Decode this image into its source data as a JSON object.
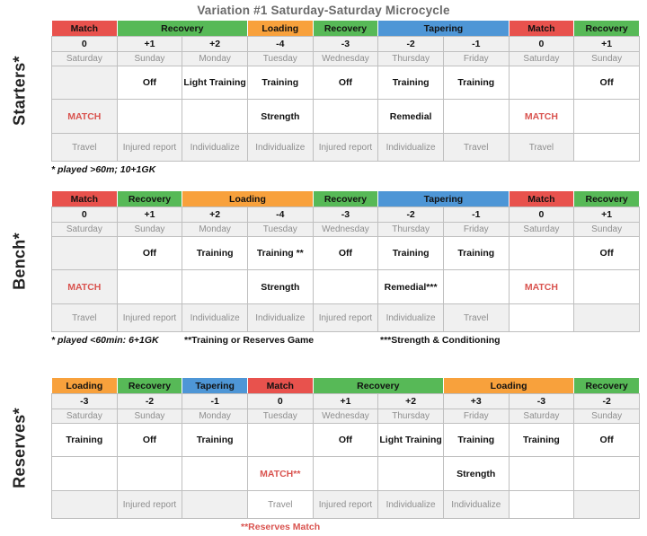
{
  "title": "Variation #1 Saturday-Saturday Microcycle",
  "colors": {
    "match_fill": "#e8524d",
    "match_text": "#7a1a14",
    "recovery_fill": "#57b957",
    "recovery_text": "#1c531c",
    "loading_fill": "#f8a13c",
    "loading_text": "#7c3910",
    "tapering_fill": "#4e96d6",
    "tapering_text": "#1b3d63",
    "red_text": "#d9534f",
    "gray_fill": "#f0f0f0",
    "muted_text": "#8e8e8e",
    "border": "#bfbfbf"
  },
  "tables": [
    {
      "name": "starters",
      "side_label": "Starters*",
      "phases": [
        {
          "label": "Match",
          "type": "match",
          "span": 1
        },
        {
          "label": "Recovery",
          "type": "recovery",
          "span": 2
        },
        {
          "label": "Loading",
          "type": "loading",
          "span": 1
        },
        {
          "label": "Recovery",
          "type": "recovery",
          "span": 1
        },
        {
          "label": "Tapering",
          "type": "tapering",
          "span": 2
        },
        {
          "label": "Match",
          "type": "match",
          "span": 1
        },
        {
          "label": "Recovery",
          "type": "recovery",
          "span": 1
        }
      ],
      "day_offsets": [
        "0",
        "+1",
        "+2",
        "-4",
        "-3",
        "-2",
        "-1",
        "0",
        "+1"
      ],
      "days": [
        "Saturday",
        "Sunday",
        "Monday",
        "Tuesday",
        "Wednesday",
        "Thursday",
        "Friday",
        "Saturday",
        "Sunday"
      ],
      "rows": {
        "training": [
          {
            "t": "",
            "bg": "gray"
          },
          "Off",
          "Light Training",
          "Training",
          "Off",
          "Training",
          "Training",
          "",
          "Off"
        ],
        "match": [
          {
            "t": "MATCH",
            "red": true,
            "bg": "gray"
          },
          "",
          "",
          "Strength",
          "",
          "Remedial",
          "",
          {
            "t": "MATCH",
            "red": true
          },
          ""
        ],
        "logistics": [
          "Travel",
          "Injured report",
          "Individualize",
          "Individualize",
          "Injured report",
          "Individualize",
          "Travel",
          "Travel",
          {
            "t": "",
            "bg": "white"
          }
        ]
      },
      "footnotes": [
        {
          "text": "* played >60m; 10+1GK",
          "style": "italic"
        }
      ]
    },
    {
      "name": "bench",
      "side_label": "Bench*",
      "phases": [
        {
          "label": "Match",
          "type": "match",
          "span": 1
        },
        {
          "label": "Recovery",
          "type": "recovery",
          "span": 1
        },
        {
          "label": "Loading",
          "type": "loading",
          "span": 2
        },
        {
          "label": "Recovery",
          "type": "recovery",
          "span": 1
        },
        {
          "label": "Tapering",
          "type": "tapering",
          "span": 2
        },
        {
          "label": "Match",
          "type": "match",
          "span": 1
        },
        {
          "label": "Recovery",
          "type": "recovery",
          "span": 1
        }
      ],
      "day_offsets": [
        "0",
        "+1",
        "+2",
        "-4",
        "-3",
        "-2",
        "-1",
        "0",
        "+1"
      ],
      "days": [
        "Saturday",
        "Sunday",
        "Monday",
        "Tuesday",
        "Wednesday",
        "Thursday",
        "Friday",
        "Saturday",
        "Sunday"
      ],
      "rows": {
        "training": [
          {
            "t": "",
            "bg": "gray"
          },
          "Off",
          "Training",
          "Training **",
          "Off",
          "Training",
          "Training",
          "",
          "Off"
        ],
        "match": [
          {
            "t": "MATCH",
            "red": true,
            "bg": "gray"
          },
          "",
          "",
          "Strength",
          "",
          "Remedial***",
          "",
          {
            "t": "MATCH",
            "red": true
          },
          ""
        ],
        "logistics": [
          "Travel",
          "Injured report",
          "Individualize",
          "Individualize",
          "Injured report",
          "Individualize",
          "Travel",
          {
            "t": "",
            "bg": "white"
          },
          ""
        ]
      },
      "footnotes": [
        {
          "text": "* played <60min: 6+1GK",
          "style": "italic"
        },
        {
          "text": "**Training or Reserves Game",
          "style": "bold"
        },
        {
          "text": "***Strength & Conditioning",
          "style": "bold"
        }
      ]
    },
    {
      "name": "reserves",
      "side_label": "Reserves*",
      "phases": [
        {
          "label": "Loading",
          "type": "loading",
          "span": 1
        },
        {
          "label": "Recovery",
          "type": "recovery",
          "span": 1
        },
        {
          "label": "Tapering",
          "type": "tapering",
          "span": 1
        },
        {
          "label": "Match",
          "type": "match",
          "span": 1
        },
        {
          "label": "Recovery",
          "type": "recovery",
          "span": 2
        },
        {
          "label": "Loading",
          "type": "loading",
          "span": 2
        },
        {
          "label": "Recovery",
          "type": "recovery",
          "span": 1
        }
      ],
      "day_offsets": [
        "-3",
        "-2",
        "-1",
        "0",
        "+1",
        "+2",
        "+3",
        "-3",
        "-2"
      ],
      "days": [
        "Saturday",
        "Sunday",
        "Monday",
        "Tuesday",
        "Wednesday",
        "Thursday",
        "Friday",
        "Saturday",
        "Sunday"
      ],
      "rows": {
        "training": [
          "Training",
          "Off",
          "Training",
          "",
          "Off",
          "Light Training",
          "Training",
          "Training",
          "Off"
        ],
        "match": [
          "",
          "",
          "",
          {
            "t": "MATCH**",
            "red": true
          },
          "",
          "",
          "Strength",
          "",
          ""
        ],
        "logistics": [
          "",
          "Injured report",
          "",
          {
            "t": "Travel",
            "bg": "white"
          },
          "Injured report",
          "Individualize",
          "Individualize",
          {
            "t": "",
            "bg": "white"
          },
          ""
        ]
      },
      "footnotes": [
        {
          "text": "**Reserves Match",
          "style": "red"
        }
      ]
    }
  ]
}
